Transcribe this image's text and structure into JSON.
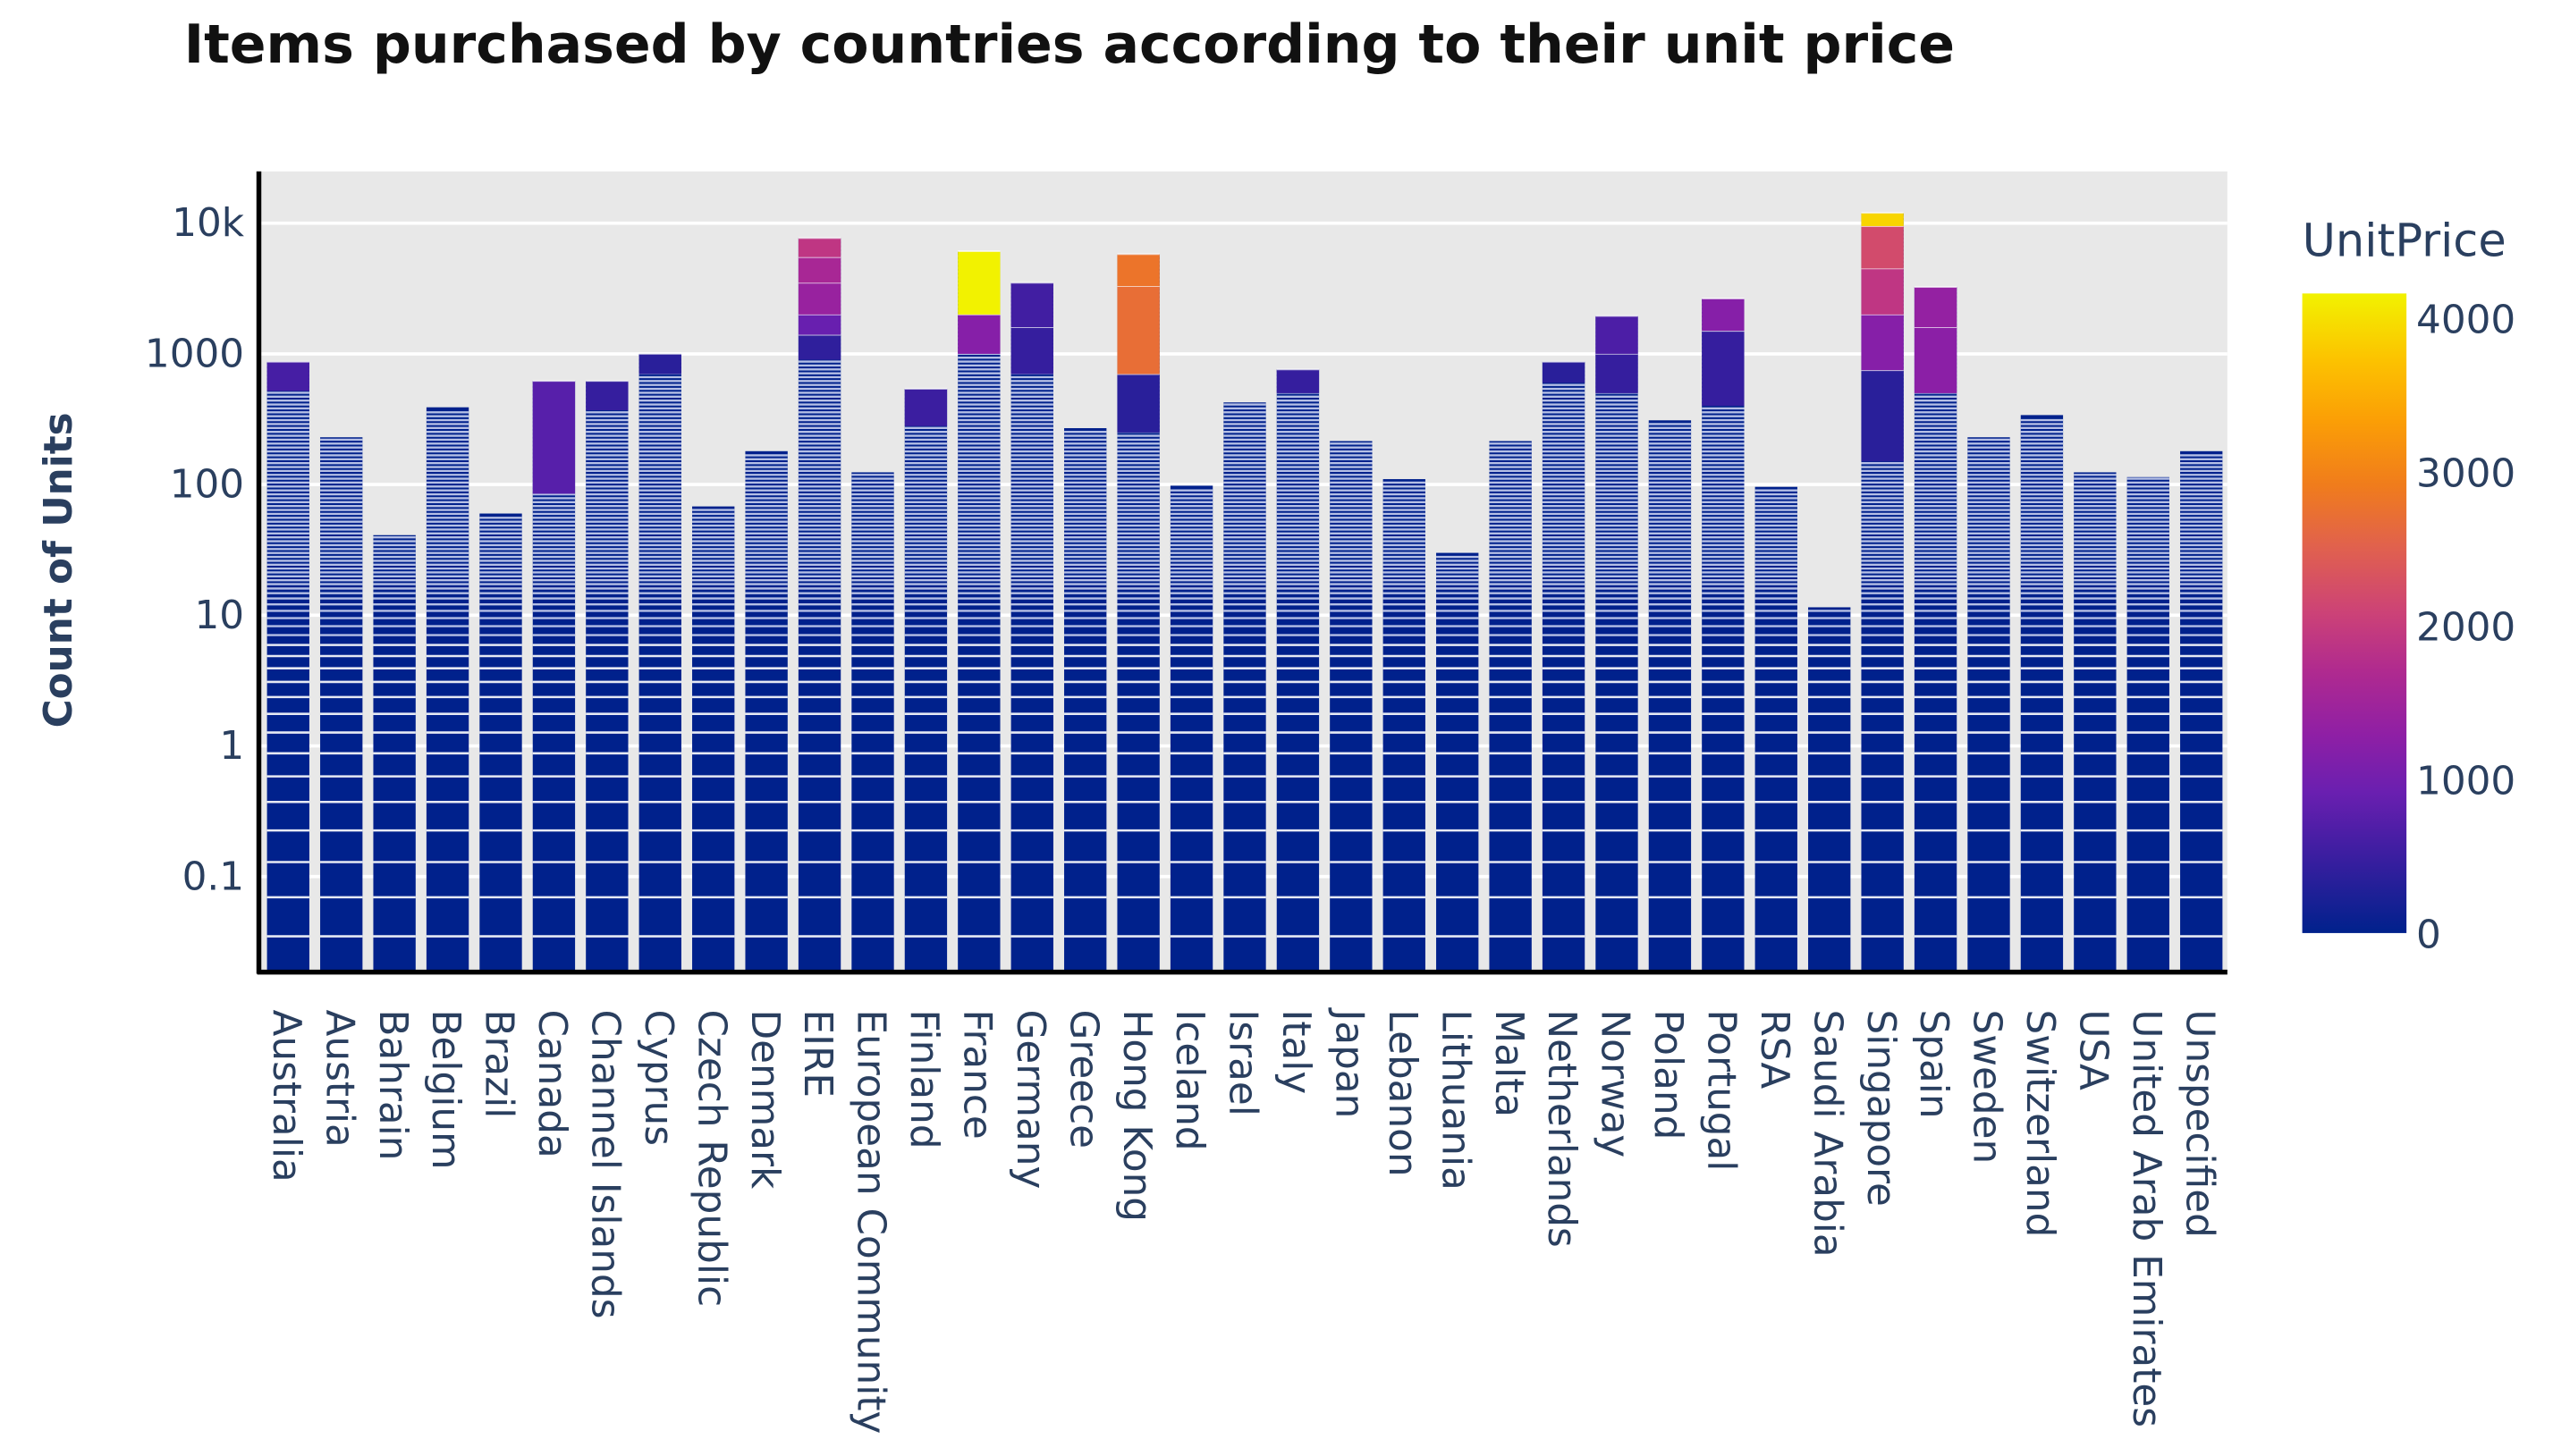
{
  "chart_data": {
    "type": "bar",
    "stacked": true,
    "title": "Items purchased by countries according to their unit price",
    "xlabel": "",
    "ylabel": "Count of Units",
    "y_scale": "log",
    "ylim": [
      0.02,
      25000
    ],
    "y_ticks": [
      {
        "value": 0.1,
        "label": "0.1"
      },
      {
        "value": 1,
        "label": "1"
      },
      {
        "value": 10,
        "label": "10"
      },
      {
        "value": 100,
        "label": "100"
      },
      {
        "value": 1000,
        "label": "1000"
      },
      {
        "value": 10000,
        "label": "10k"
      }
    ],
    "grid": true,
    "colorbar": {
      "title": "UnitPrice",
      "range": [
        0,
        4161
      ],
      "ticks": [
        {
          "value": 0,
          "label": "0"
        },
        {
          "value": 1000,
          "label": "1000"
        },
        {
          "value": 2000,
          "label": "2000"
        },
        {
          "value": 3000,
          "label": "3000"
        },
        {
          "value": 4000,
          "label": "4000"
        }
      ],
      "colorscale": [
        [
          0,
          "#00218c"
        ],
        [
          0.12,
          "#3b1ea0"
        ],
        [
          0.22,
          "#6a1fb0"
        ],
        [
          0.31,
          "#8f1fa5"
        ],
        [
          0.41,
          "#b02a8f"
        ],
        [
          0.5,
          "#cc4277"
        ],
        [
          0.6,
          "#e0604f"
        ],
        [
          0.7,
          "#f07c1c"
        ],
        [
          0.8,
          "#fb9e06"
        ],
        [
          0.9,
          "#fcc400"
        ],
        [
          1,
          "#f2f200"
        ]
      ]
    },
    "categories": [
      "Australia",
      "Austria",
      "Bahrain",
      "Belgium",
      "Brazil",
      "Canada",
      "Channel Islands",
      "Cyprus",
      "Czech Republic",
      "Denmark",
      "EIRE",
      "European Community",
      "Finland",
      "France",
      "Germany",
      "Greece",
      "Hong Kong",
      "Iceland",
      "Israel",
      "Italy",
      "Japan",
      "Lebanon",
      "Lithuania",
      "Malta",
      "Netherlands",
      "Norway",
      "Poland",
      "Portugal",
      "RSA",
      "Saudi Arabia",
      "Singapore",
      "Spain",
      "Sweden",
      "Switzerland",
      "USA",
      "United Arab Emirates",
      "Unspecified"
    ],
    "values": [
      870,
      230,
      41,
      390,
      60,
      620,
      620,
      1000,
      68,
      180,
      7700,
      124,
      540,
      6100,
      3500,
      270,
      5800,
      98,
      425,
      760,
      215,
      110,
      30,
      215,
      870,
      1950,
      310,
      2650,
      96,
      11.5,
      12000,
      3250,
      230,
      340,
      124,
      114,
      180
    ],
    "high_price_segments": {
      "Australia": [
        [
          520,
          870,
          600
        ]
      ],
      "Canada": [
        [
          85,
          620,
          750
        ]
      ],
      "Channel Islands": [
        [
          370,
          620,
          450
        ]
      ],
      "Cyprus": [
        [
          700,
          1000,
          350
        ]
      ],
      "EIRE": [
        [
          900,
          1400,
          400
        ],
        [
          1400,
          2000,
          900
        ],
        [
          2000,
          3500,
          1400
        ],
        [
          3500,
          5500,
          1600
        ],
        [
          5500,
          7700,
          1900
        ]
      ],
      "Finland": [
        [
          280,
          540,
          500
        ]
      ],
      "France": [
        [
          1000,
          2000,
          1200
        ],
        [
          2000,
          6100,
          4161
        ]
      ],
      "Germany": [
        [
          700,
          1600,
          450
        ],
        [
          1600,
          3500,
          550
        ]
      ],
      "Hong Kong": [
        [
          250,
          700,
          350
        ],
        [
          700,
          3300,
          2700
        ],
        [
          3300,
          5800,
          2800
        ]
      ],
      "Italy": [
        [
          500,
          760,
          450
        ]
      ],
      "Netherlands": [
        [
          600,
          870,
          350
        ]
      ],
      "Norway": [
        [
          500,
          1000,
          450
        ],
        [
          1000,
          1950,
          650
        ]
      ],
      "Portugal": [
        [
          400,
          1500,
          450
        ],
        [
          1500,
          2650,
          1200
        ]
      ],
      "Singapore": [
        [
          150,
          750,
          350
        ],
        [
          750,
          2000,
          1200
        ],
        [
          2000,
          4500,
          1900
        ],
        [
          4500,
          9500,
          2200
        ],
        [
          9500,
          12000,
          3900
        ]
      ],
      "Spain": [
        [
          500,
          1600,
          1250
        ],
        [
          1600,
          3250,
          1350
        ]
      ]
    }
  }
}
